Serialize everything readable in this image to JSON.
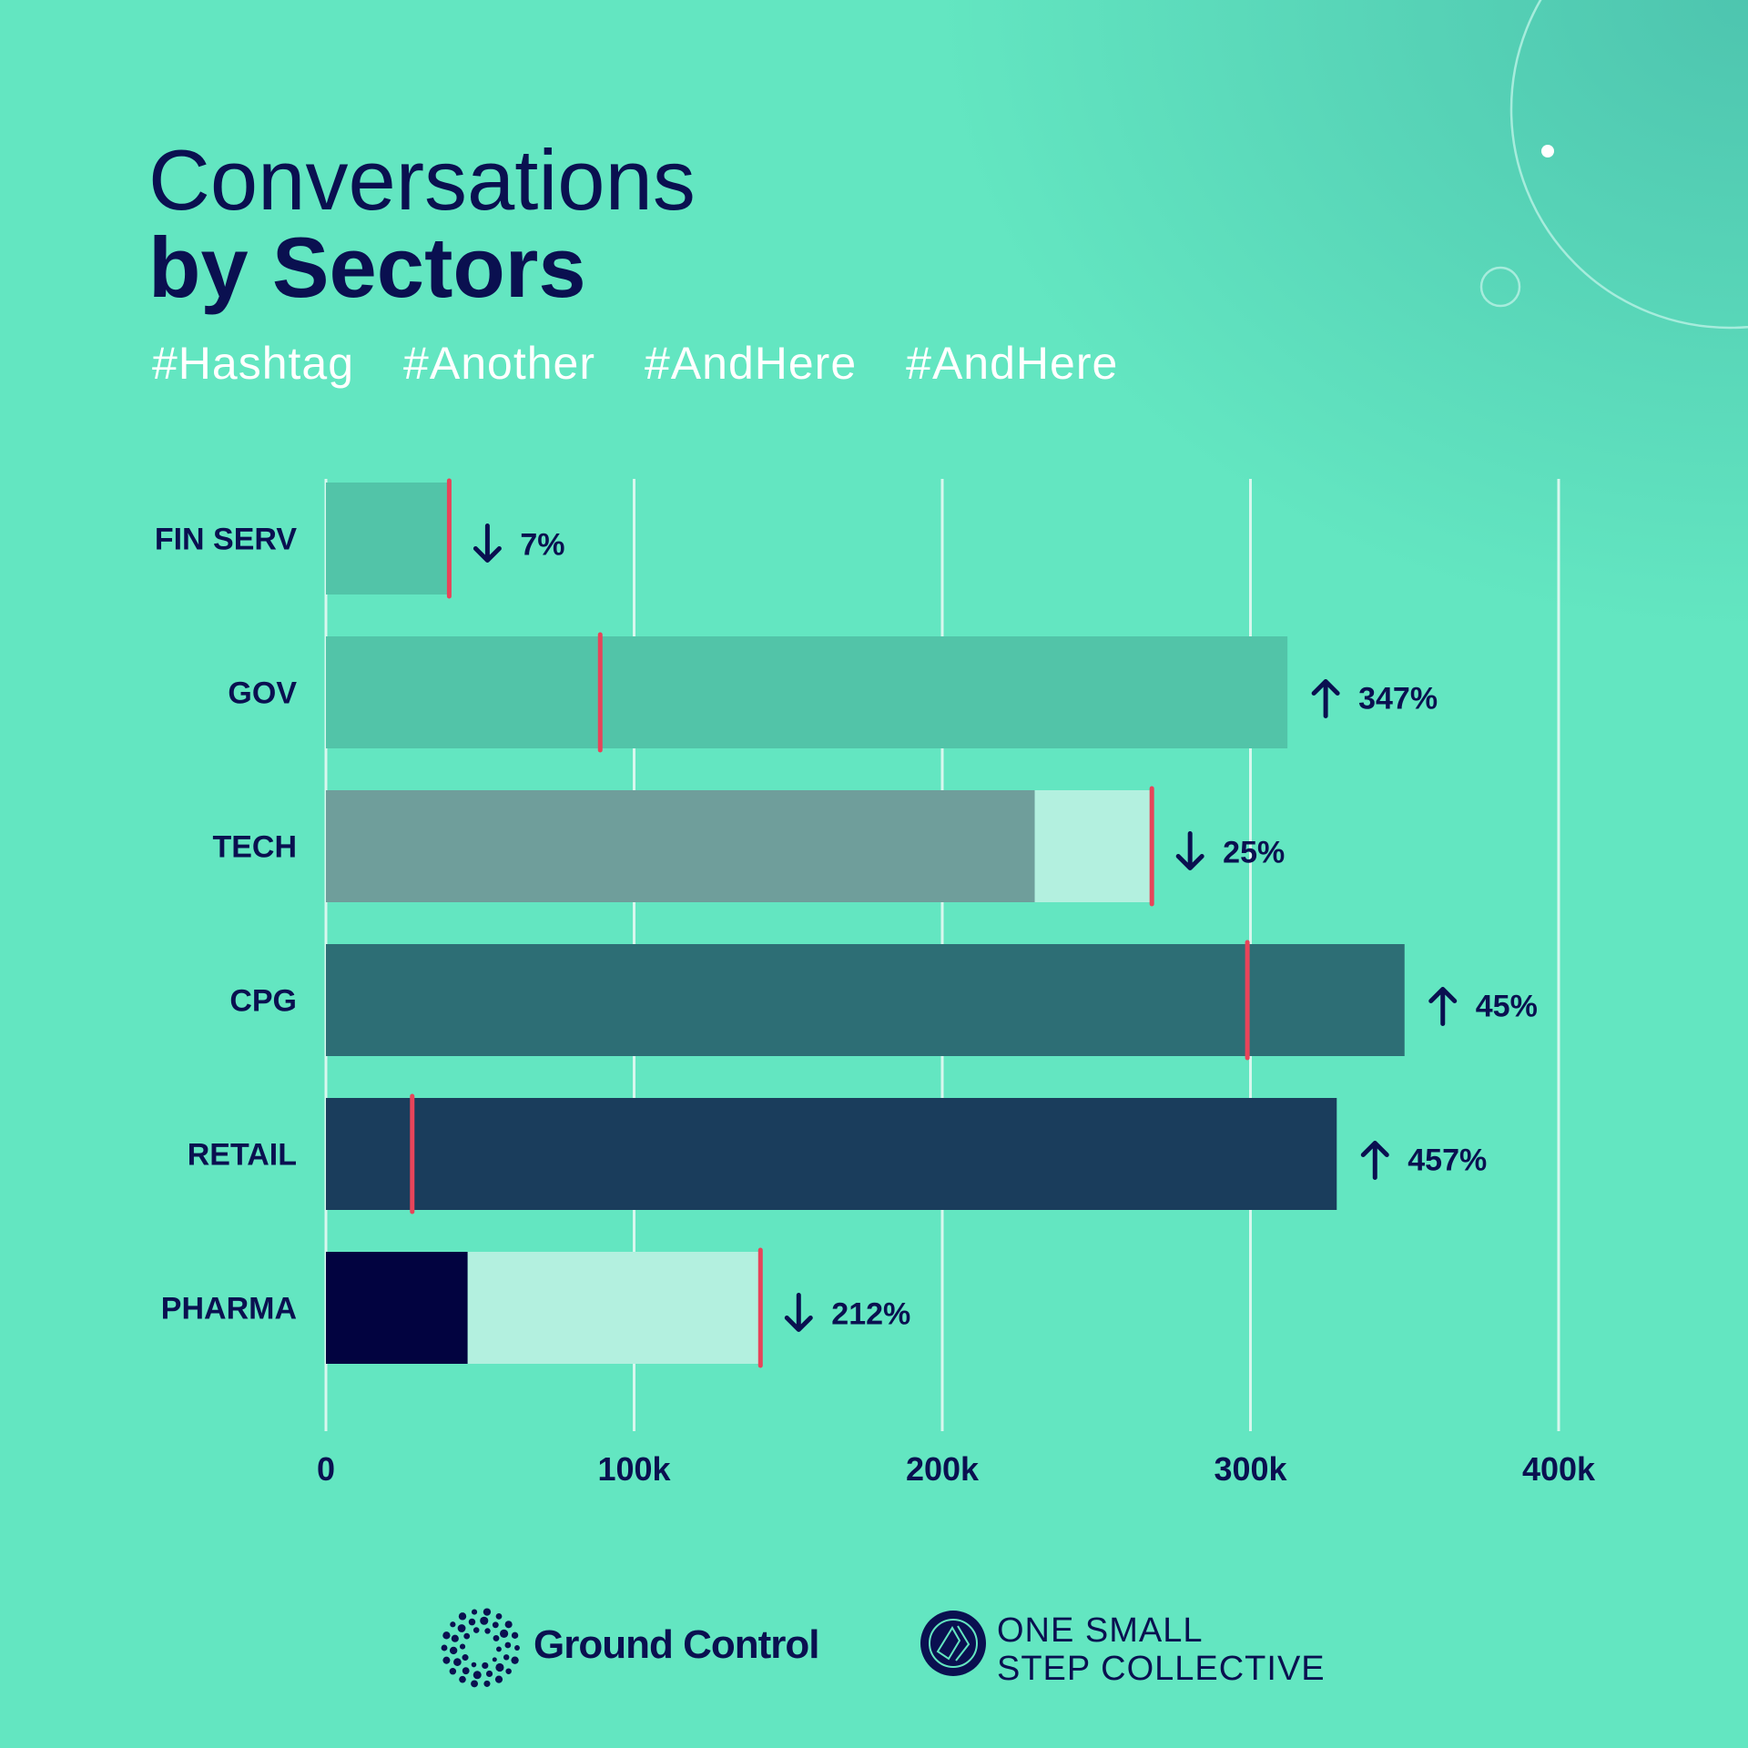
{
  "title_line1": "Conversations",
  "title_line2": "by Sectors",
  "hashtags": [
    "#Hashtag",
    "#Another",
    "#AndHere",
    "#AndHere"
  ],
  "chart_data": {
    "type": "bar",
    "orientation": "horizontal",
    "title": "Conversations by Sectors",
    "xlim": [
      0,
      400000
    ],
    "x_ticks": [
      0,
      100000,
      200000,
      300000,
      400000
    ],
    "x_tick_labels": [
      "0",
      "100k",
      "200k",
      "300k",
      "400k"
    ],
    "grid": true,
    "categories": [
      "FIN SERV",
      "GOV",
      "TECH",
      "CPG",
      "RETAIL",
      "PHARMA"
    ],
    "values": [
      40000,
      312000,
      230000,
      350000,
      328000,
      46000
    ],
    "markers": [
      40000,
      89000,
      268000,
      299000,
      28000,
      141000
    ],
    "change_direction": [
      "down",
      "up",
      "down",
      "up",
      "up",
      "down"
    ],
    "change_labels": [
      "7%",
      "347%",
      "25%",
      "45%",
      "457%",
      "212%"
    ],
    "colors": {
      "bars": [
        "#52c4a8",
        "#52c4a8",
        "#6f9e9b",
        "#2d6e75",
        "#1a3d5c",
        "#020340"
      ],
      "decline_segment": "#b3f0df",
      "marker": "#e8445a",
      "text": "#0a1050"
    }
  },
  "footer": {
    "brand1": "Ground Control",
    "brand2_line1": "ONE SMALL",
    "brand2_line2": "STEP COLLECTIVE"
  }
}
